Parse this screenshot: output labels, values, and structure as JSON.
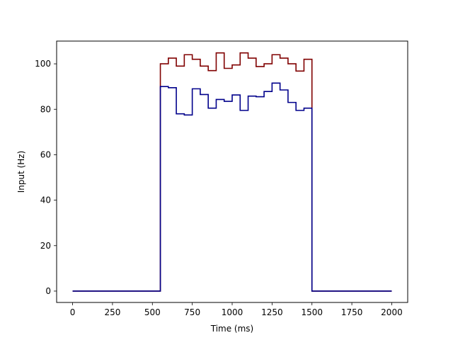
{
  "chart_data": {
    "type": "line",
    "title": "",
    "xlabel": "Time (ms)",
    "ylabel": "Input (Hz)",
    "xlim": [
      -100,
      2100
    ],
    "ylim": [
      -5,
      110
    ],
    "xticks": [
      0,
      250,
      500,
      750,
      1000,
      1250,
      1500,
      1750,
      2000
    ],
    "yticks": [
      0,
      20,
      40,
      60,
      80,
      100
    ],
    "grid": false,
    "legend": "none",
    "series": [
      {
        "name": "red",
        "color": "#800000",
        "step_x": [
          0,
          550,
          600,
          650,
          700,
          750,
          800,
          850,
          900,
          950,
          1000,
          1050,
          1100,
          1150,
          1200,
          1250,
          1300,
          1350,
          1400,
          1450,
          1500,
          2000
        ],
        "step_y": [
          0,
          100,
          102.5,
          99,
          104,
          102,
          99,
          97,
          104.8,
          98,
          99.5,
          104.8,
          102.5,
          98.8,
          100,
          104,
          102.5,
          100,
          96.8,
          102,
          0,
          0
        ]
      },
      {
        "name": "blue",
        "color": "#00008b",
        "step_x": [
          0,
          550,
          600,
          650,
          700,
          750,
          800,
          850,
          900,
          950,
          1000,
          1050,
          1100,
          1150,
          1200,
          1250,
          1300,
          1350,
          1400,
          1450,
          1500,
          2000
        ],
        "step_y": [
          0,
          90,
          89.5,
          78,
          77.5,
          89,
          86.5,
          80.5,
          84.3,
          83.5,
          86.3,
          79.5,
          85.8,
          85.5,
          87.8,
          91.5,
          88.5,
          83,
          79.5,
          80.5,
          0,
          0
        ]
      }
    ]
  }
}
